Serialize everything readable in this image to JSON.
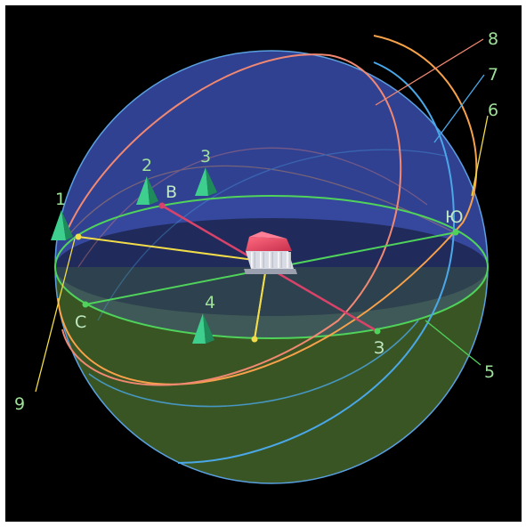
{
  "colors": {
    "background": "#000000",
    "upper_sphere": "#34449a",
    "lower_sphere": "#3d5a26",
    "horizon": "#4fd35a",
    "meridian": "#d9436a",
    "yellow_lines": "#f2dc4a",
    "orbit_orange": "#f7a24a",
    "orbit_salmon": "#f08872",
    "orbit_blue": "#4aa8e8",
    "sphere_outline": "#5aa0e0",
    "label_green": "#9fe09a",
    "marker": "#3ecf8e",
    "roof": "#e0405e"
  },
  "directions": {
    "north": "С",
    "south": "Ю",
    "east": "В",
    "west": "З"
  },
  "callouts": [
    "1",
    "2",
    "3",
    "4",
    "5",
    "6",
    "7",
    "8",
    "9"
  ],
  "markers": {
    "m1": "1",
    "m2": "2",
    "m3": "3",
    "m4": "4"
  },
  "icons": {
    "center": "building-icon",
    "marker": "pyramid-marker-icon"
  }
}
